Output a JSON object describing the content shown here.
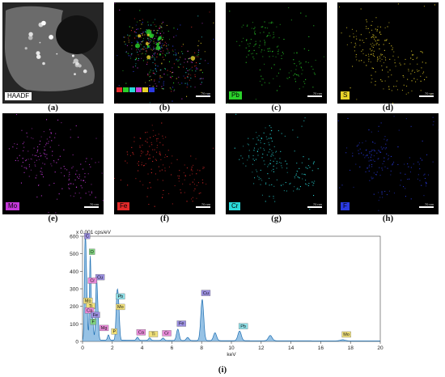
{
  "panels": [
    {
      "id": "a",
      "caption": "(a)",
      "label": "HAADF",
      "scale": "",
      "kind": "haadf",
      "color": "#ffffff"
    },
    {
      "id": "b",
      "caption": "(b)",
      "label": "",
      "scale": "70 nm",
      "kind": "overlay",
      "color": "#ffffff"
    },
    {
      "id": "c",
      "caption": "(c)",
      "label": "Pb",
      "scale": "70 nm",
      "kind": "map",
      "color": "#2ad12a"
    },
    {
      "id": "d",
      "caption": "(d)",
      "label": "S",
      "scale": "70 nm",
      "kind": "map",
      "color": "#e8d22a"
    },
    {
      "id": "e",
      "caption": "(e)",
      "label": "Mo",
      "scale": "70 nm",
      "kind": "map",
      "color": "#c338d8"
    },
    {
      "id": "f",
      "caption": "(f)",
      "label": "Fe",
      "scale": "70 nm",
      "kind": "map",
      "color": "#e22a2a"
    },
    {
      "id": "g",
      "caption": "(g)",
      "label": "Cr",
      "scale": "70 nm",
      "kind": "map",
      "color": "#2ad8d8"
    },
    {
      "id": "h",
      "caption": "(h)",
      "label": "F",
      "scale": "70 nm",
      "kind": "map",
      "color": "#2a3ae2"
    }
  ],
  "overlay_legend_colors": [
    "#e22a2a",
    "#2ad12a",
    "#2ad8d8",
    "#c338d8",
    "#e8d22a",
    "#2a3ae2"
  ],
  "spectrum_caption": "(i)",
  "chart_data": {
    "type": "line",
    "title": "",
    "unit_label": "x 0.001 cps/eV",
    "xlabel": "keV",
    "ylabel": "",
    "xlim": [
      0,
      20
    ],
    "ylim": [
      0,
      600
    ],
    "xticks": [
      0,
      2,
      4,
      6,
      8,
      10,
      12,
      14,
      16,
      18,
      20
    ],
    "yticks": [
      0,
      100,
      200,
      300,
      400,
      500,
      600
    ],
    "line_color": "#1f6fb2",
    "fill_color": "#3f8fd0",
    "peaks": [
      {
        "x": 0.18,
        "y": 600
      },
      {
        "x": 0.28,
        "y": 260
      },
      {
        "x": 0.52,
        "y": 480
      },
      {
        "x": 0.68,
        "y": 120
      },
      {
        "x": 0.93,
        "y": 310
      },
      {
        "x": 1.02,
        "y": 140
      },
      {
        "x": 1.74,
        "y": 30
      },
      {
        "x": 2.31,
        "y": 230
      },
      {
        "x": 2.42,
        "y": 185
      },
      {
        "x": 3.69,
        "y": 18
      },
      {
        "x": 4.51,
        "y": 14
      },
      {
        "x": 5.41,
        "y": 14
      },
      {
        "x": 6.4,
        "y": 65
      },
      {
        "x": 7.06,
        "y": 18
      },
      {
        "x": 8.04,
        "y": 235
      },
      {
        "x": 8.9,
        "y": 45
      },
      {
        "x": 10.55,
        "y": 55
      },
      {
        "x": 12.61,
        "y": 30
      },
      {
        "x": 17.48,
        "y": 6
      }
    ],
    "annotations": [
      {
        "text": "C",
        "x": 0.18,
        "y": 590,
        "color": "#9b8fe0"
      },
      {
        "text": "O",
        "x": 0.5,
        "y": 500,
        "color": "#7fd37f"
      },
      {
        "text": "Cu",
        "x": 0.93,
        "y": 355,
        "color": "#9b8fe0"
      },
      {
        "text": "Cr",
        "x": 0.42,
        "y": 335,
        "color": "#e88ad8"
      },
      {
        "text": "Mo",
        "x": 0.12,
        "y": 220,
        "color": "#f0e07a"
      },
      {
        "text": "Ti",
        "x": 0.3,
        "y": 190,
        "color": "#f0e07a"
      },
      {
        "text": "Ca",
        "x": 0.22,
        "y": 165,
        "color": "#e88ad8"
      },
      {
        "text": "Fe",
        "x": 0.62,
        "y": 140,
        "color": "#9b8fe0"
      },
      {
        "text": "F",
        "x": 0.58,
        "y": 100,
        "color": "#7fd37f"
      },
      {
        "text": "Mg",
        "x": 1.2,
        "y": 65,
        "color": "#e88ad8"
      },
      {
        "text": "P",
        "x": 2.0,
        "y": 45,
        "color": "#f0e07a"
      },
      {
        "text": "Pb",
        "x": 2.3,
        "y": 245,
        "color": "#8fe0e8"
      },
      {
        "text": "Mo",
        "x": 2.3,
        "y": 185,
        "color": "#f0e07a"
      },
      {
        "text": "Ca",
        "x": 3.69,
        "y": 40,
        "color": "#e88ad8"
      },
      {
        "text": "Ti",
        "x": 4.51,
        "y": 30,
        "color": "#f0e07a"
      },
      {
        "text": "Cr",
        "x": 5.41,
        "y": 35,
        "color": "#e88ad8"
      },
      {
        "text": "Fe",
        "x": 6.4,
        "y": 90,
        "color": "#9b8fe0"
      },
      {
        "text": "Cu",
        "x": 8.04,
        "y": 265,
        "color": "#9b8fe0"
      },
      {
        "text": "Pb",
        "x": 10.55,
        "y": 75,
        "color": "#8fe0e8"
      },
      {
        "text": "Mo",
        "x": 17.48,
        "y": 28,
        "color": "#f0e07a"
      }
    ]
  }
}
